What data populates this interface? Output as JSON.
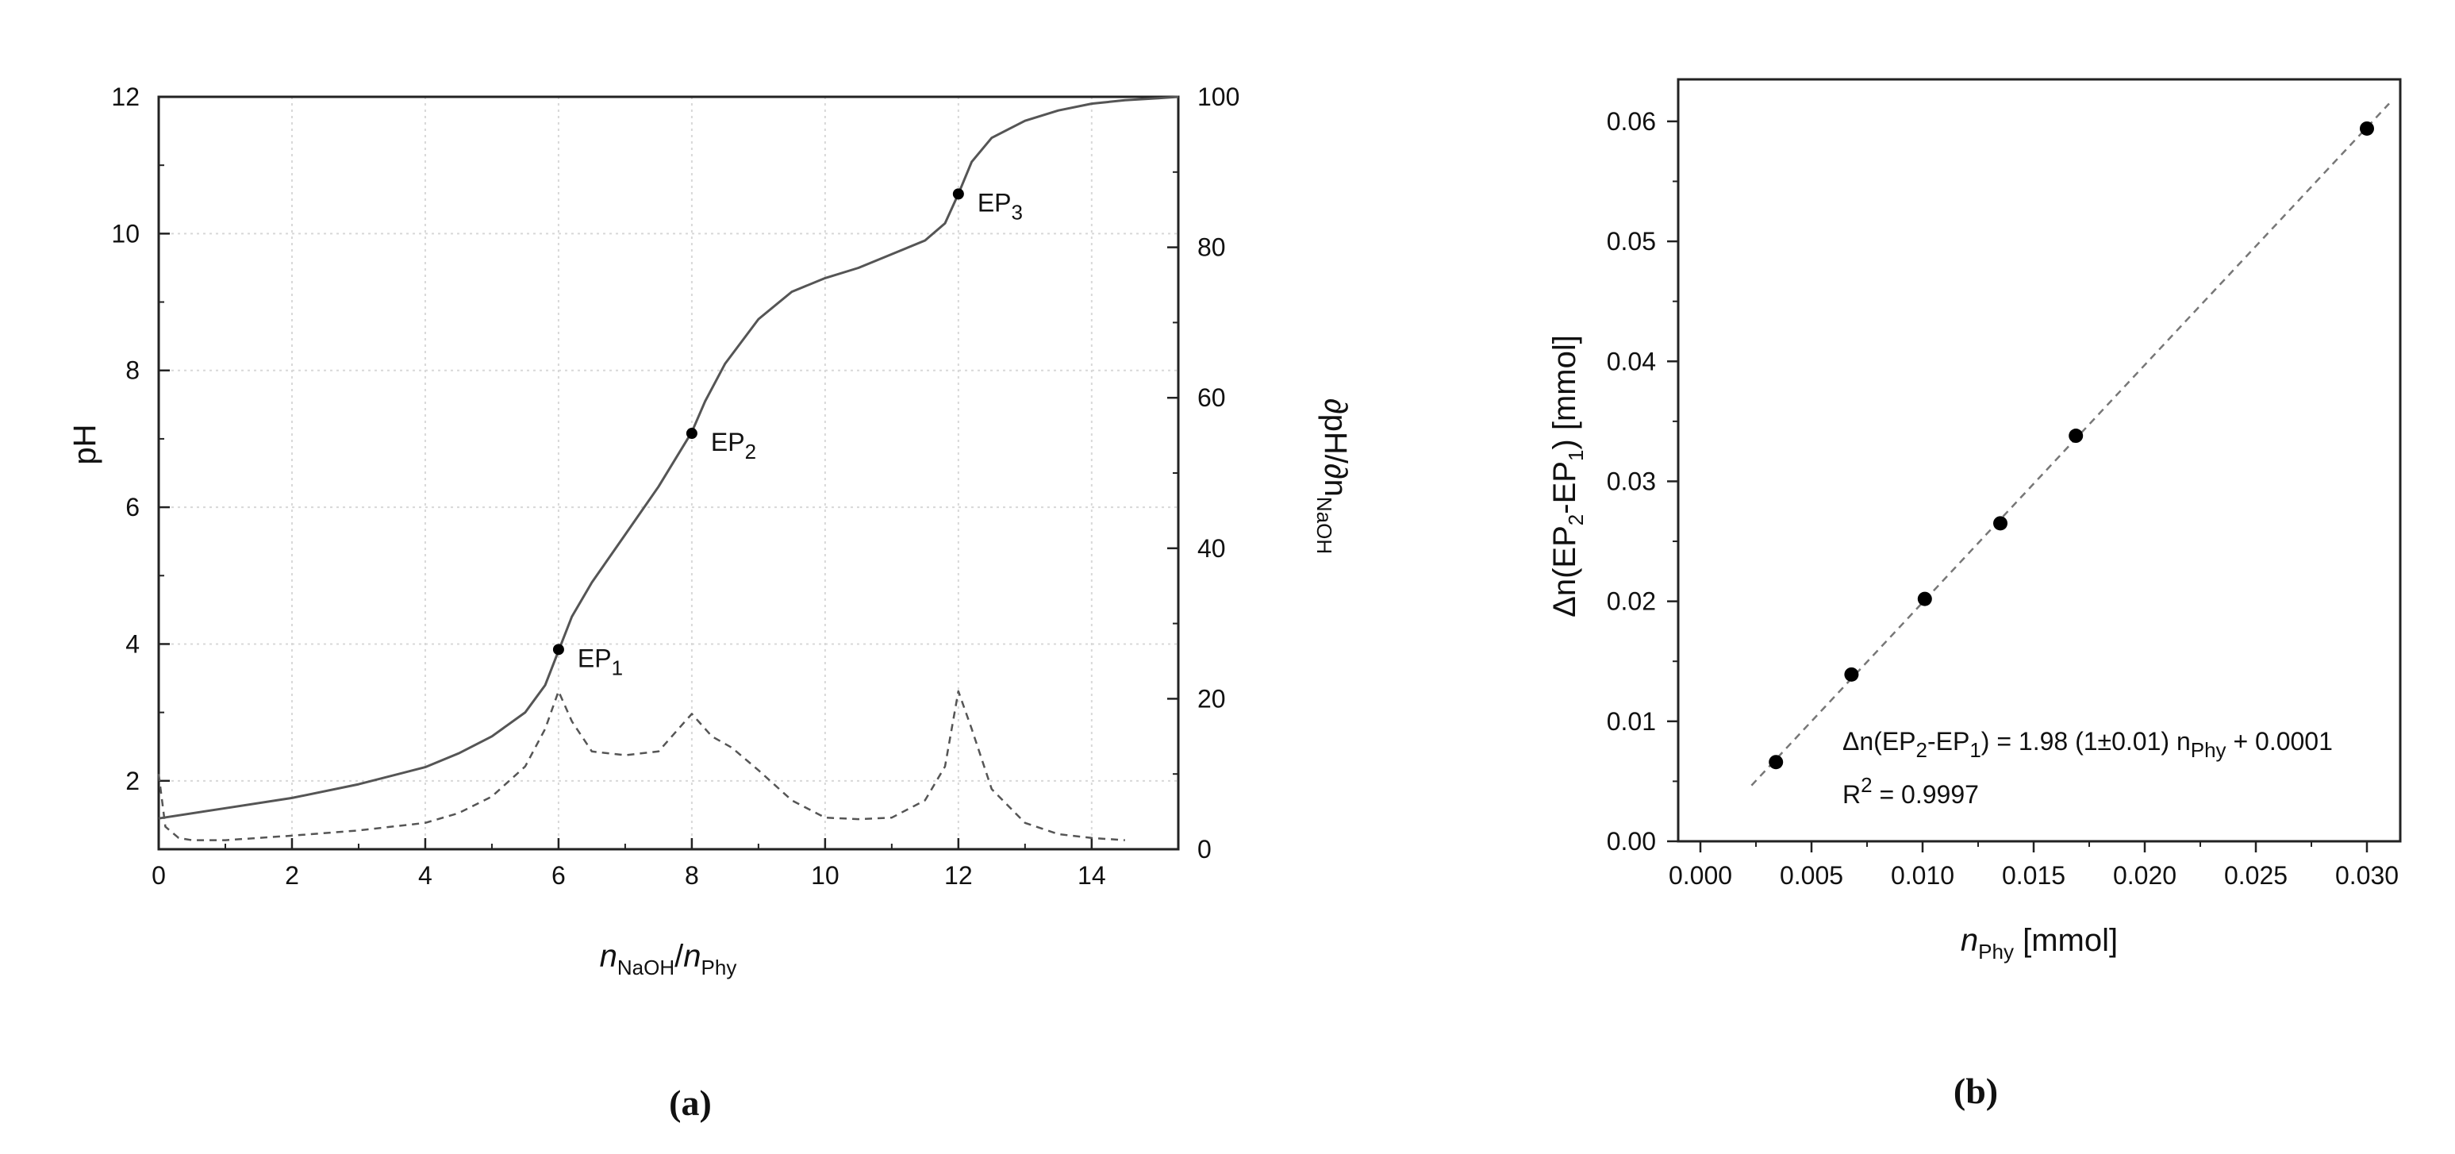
{
  "chart_data": [
    {
      "type": "line",
      "panel_label": "(a)",
      "xlim": [
        0,
        15.3
      ],
      "ylim": [
        1,
        12
      ],
      "y2lim": [
        0,
        100
      ],
      "x_ticks": [
        0,
        2,
        4,
        6,
        8,
        10,
        12,
        14
      ],
      "y_ticks": [
        2,
        4,
        6,
        8,
        10,
        12
      ],
      "y2_ticks": [
        0,
        20,
        40,
        60,
        80,
        100
      ],
      "grid": true,
      "ylabel": "pH",
      "xlabel": {
        "n1": "n",
        "s1": "NaOH",
        "sep": "/",
        "n2": "n",
        "s2": "Phy"
      },
      "y2label": {
        "main": "∂pH/∂n",
        "sub": "NaOH"
      },
      "series": [
        {
          "style": "solid",
          "axis": "left",
          "x": [
            0,
            1,
            2,
            3,
            4,
            4.5,
            5,
            5.5,
            5.8,
            6.0,
            6.2,
            6.5,
            7,
            7.5,
            8,
            8.2,
            8.5,
            9,
            9.5,
            10,
            10.5,
            11,
            11.5,
            11.8,
            12.0,
            12.2,
            12.5,
            13,
            13.5,
            14,
            14.5,
            15,
            15.3
          ],
          "y": [
            1.45,
            1.6,
            1.75,
            1.95,
            2.2,
            2.4,
            2.65,
            3.0,
            3.4,
            3.9,
            4.4,
            4.9,
            5.6,
            6.3,
            7.1,
            7.55,
            8.1,
            8.75,
            9.15,
            9.35,
            9.5,
            9.7,
            9.9,
            10.15,
            10.58,
            11.05,
            11.4,
            11.65,
            11.8,
            11.9,
            11.95,
            11.98,
            12.0
          ]
        },
        {
          "style": "dashed",
          "axis": "right",
          "x": [
            0,
            0.1,
            0.3,
            0.5,
            1,
            2,
            3,
            4,
            4.5,
            5,
            5.5,
            5.8,
            6.0,
            6.2,
            6.5,
            7,
            7.5,
            7.8,
            8.0,
            8.3,
            8.6,
            9,
            9.5,
            10,
            10.5,
            11,
            11.5,
            11.8,
            12.0,
            12.2,
            12.5,
            13,
            13.5,
            14,
            14.5
          ],
          "y": [
            10,
            3,
            1.5,
            1.2,
            1.2,
            1.8,
            2.5,
            3.5,
            4.8,
            7,
            11,
            16,
            21,
            17,
            13,
            12.5,
            13,
            16,
            18,
            15,
            13.5,
            10.5,
            6.5,
            4.2,
            4.0,
            4.2,
            6.5,
            11,
            21,
            16,
            8,
            3.5,
            2,
            1.5,
            1.2
          ]
        }
      ],
      "points": [
        {
          "x": 6.0,
          "y": 3.92,
          "label": "EP",
          "sub": "1"
        },
        {
          "x": 8.0,
          "y": 7.08,
          "label": "EP",
          "sub": "2"
        },
        {
          "x": 12.0,
          "y": 10.58,
          "label": "EP",
          "sub": "3"
        }
      ]
    },
    {
      "type": "scatter",
      "panel_label": "(b)",
      "xlim": [
        -0.001,
        0.0315
      ],
      "ylim": [
        0,
        0.0635
      ],
      "x_ticks": [
        "0.000",
        "0.005",
        "0.010",
        "0.015",
        "0.020",
        "0.025",
        "0.030"
      ],
      "y_ticks": [
        "0.00",
        "0.01",
        "0.02",
        "0.03",
        "0.04",
        "0.05",
        "0.06"
      ],
      "grid": false,
      "xlabel": {
        "n": "n",
        "sub": "Phy",
        "unit": " [mmol]"
      },
      "ylabel": {
        "a": "Δn(EP",
        "s1": "2",
        "b": "-EP",
        "s2": "1",
        "c": ") [mmol]"
      },
      "points": {
        "x": [
          0.0034,
          0.0068,
          0.0101,
          0.0135,
          0.0169,
          0.03
        ],
        "y": [
          0.0066,
          0.0139,
          0.0202,
          0.0265,
          0.0338,
          0.0594
        ]
      },
      "fit": {
        "slope": 1.98,
        "intercept": 0.0001,
        "x_range": [
          0.0023,
          0.031
        ]
      },
      "equation": {
        "a": "Δn(EP",
        "s1": "2",
        "b": "-EP",
        "s2": "1",
        "c": ") = 1.98 (1±0.01) n",
        "s3": "Phy",
        "d": " + 0.0001"
      },
      "r2": {
        "a": "R",
        "sup": "2",
        "b": " = 0.9997"
      }
    }
  ]
}
